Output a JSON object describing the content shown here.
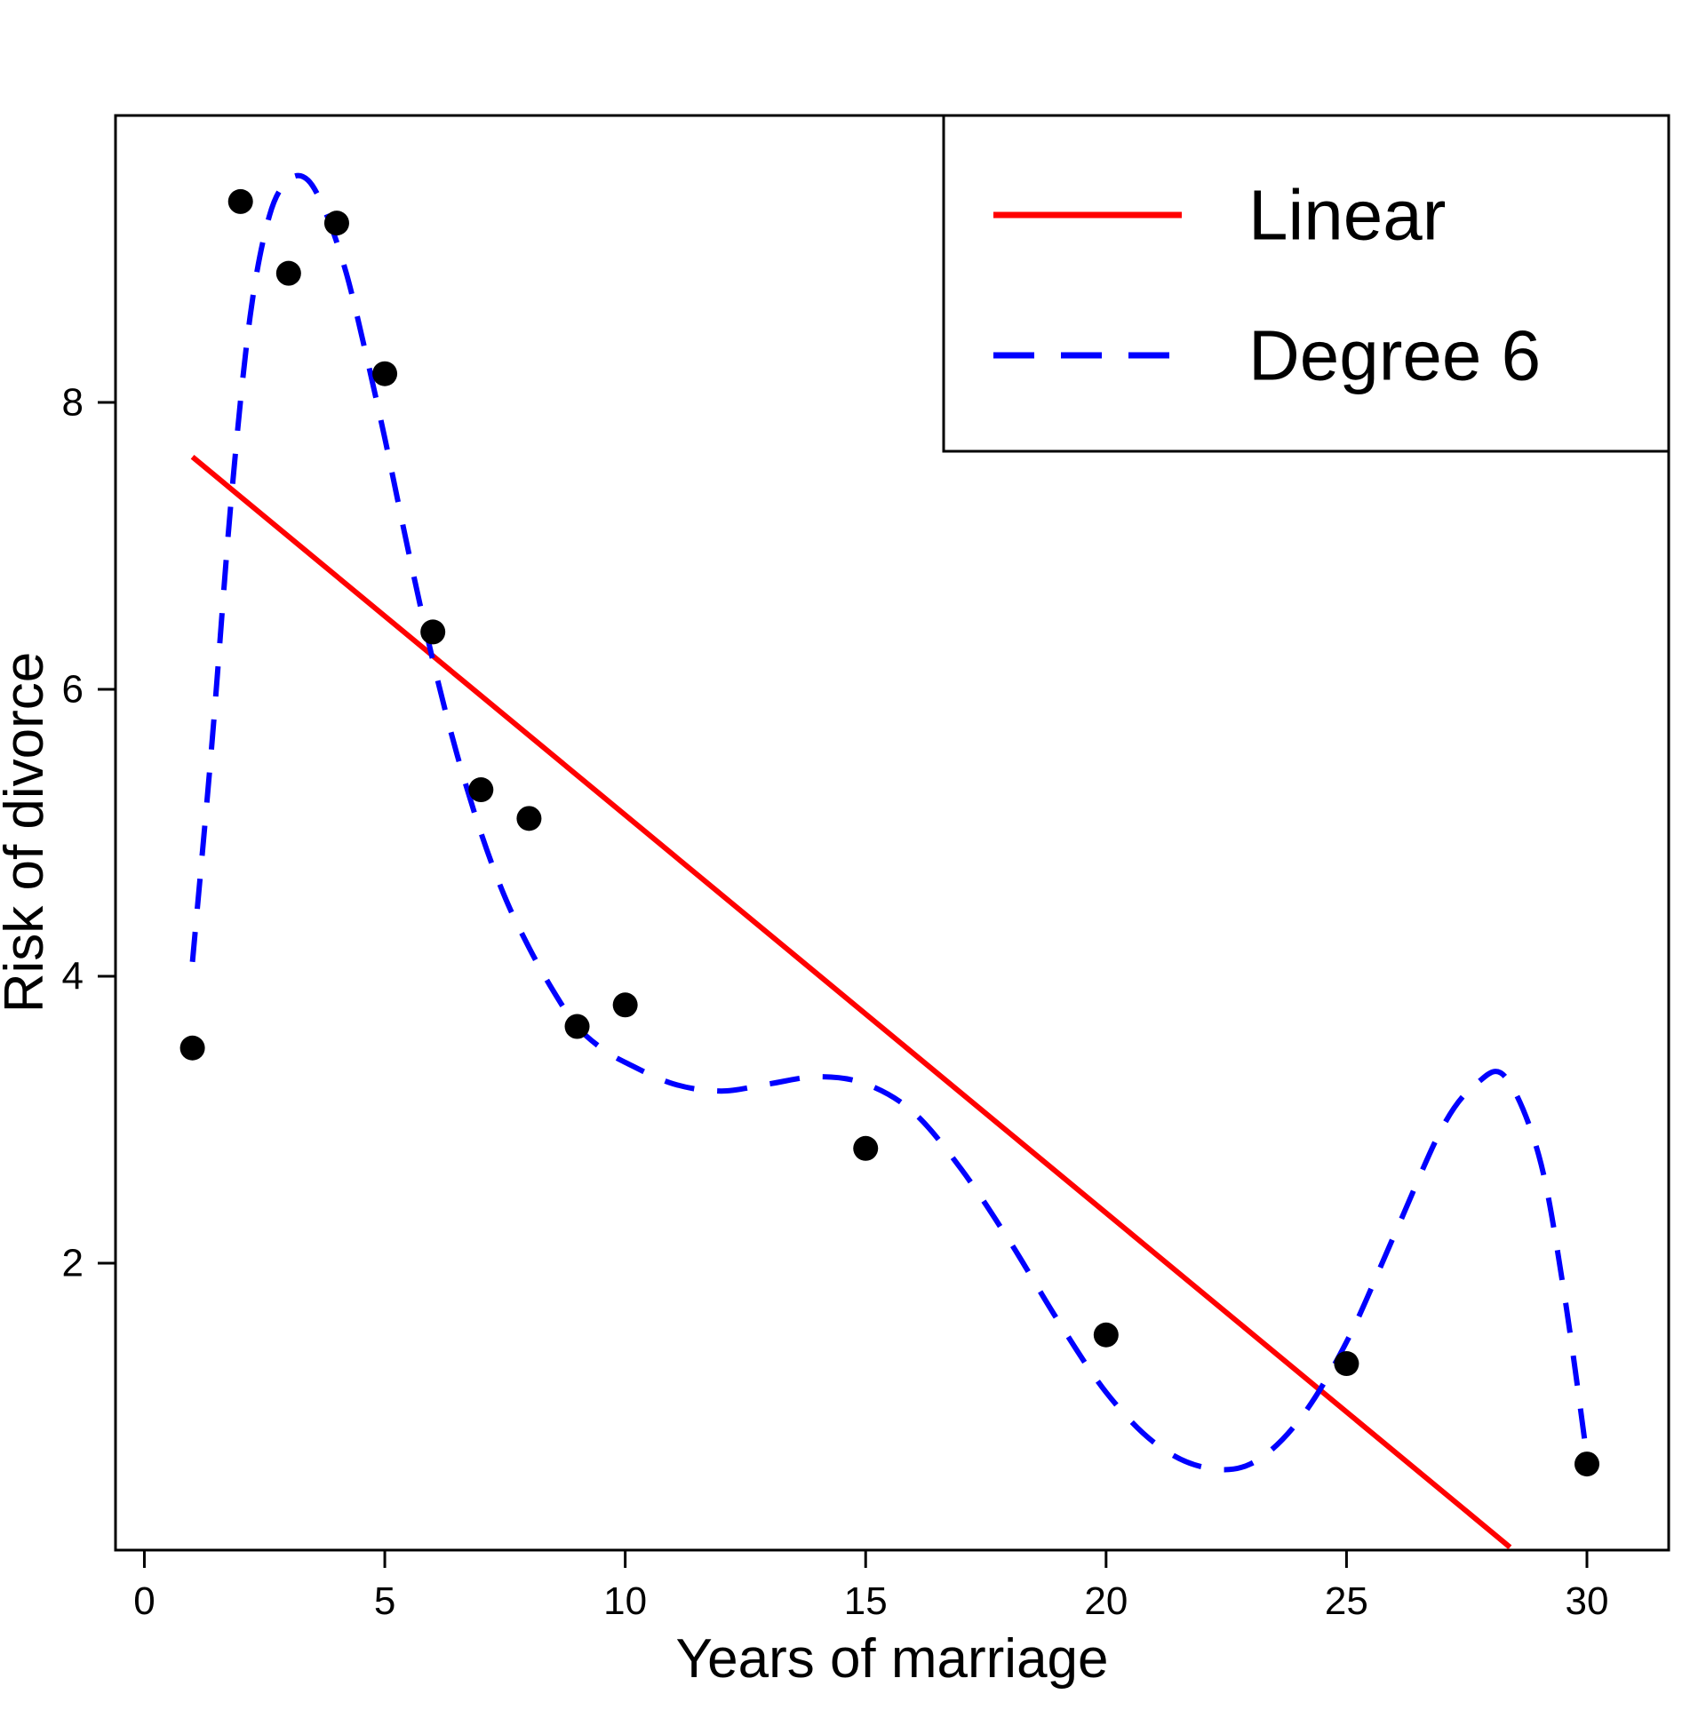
{
  "chart_data": {
    "type": "scatter",
    "title": "",
    "xlabel": "Years of marriage",
    "ylabel": "Risk of divorce",
    "xlim": [
      -0.6,
      31.7
    ],
    "ylim": [
      0,
      10
    ],
    "x_ticks": [
      0,
      5,
      10,
      15,
      20,
      25,
      30
    ],
    "y_ticks": [
      2,
      4,
      6,
      8
    ],
    "grid": false,
    "legend_position": "top-right",
    "point_color": "#000000",
    "points": {
      "x": [
        1,
        2,
        3,
        4,
        5,
        6,
        7,
        8,
        9,
        10,
        15,
        20,
        25,
        30
      ],
      "y": [
        3.5,
        9.4,
        8.9,
        9.25,
        8.2,
        6.4,
        5.3,
        5.1,
        3.65,
        3.8,
        2.8,
        1.5,
        1.3,
        0.6
      ]
    },
    "series": [
      {
        "name": "Linear",
        "type": "line",
        "style": "solid",
        "color": "#ff0000",
        "x": [
          1,
          28.4
        ],
        "y": [
          7.62,
          0.02
        ]
      },
      {
        "name": "Degree 6",
        "type": "line",
        "style": "dashed",
        "color": "#0000ff",
        "x": [
          1,
          1.4,
          1.8,
          2.2,
          2.6,
          3.0,
          3.4,
          3.8,
          4.2,
          4.6,
          5.0,
          5.5,
          6.0,
          6.5,
          7.0,
          7.5,
          8.0,
          8.5,
          9.0,
          9.5,
          10,
          11,
          12,
          13,
          14,
          15,
          16,
          17,
          18,
          19,
          20,
          21,
          22,
          23,
          24,
          25,
          26,
          27,
          27.7,
          28.3,
          29,
          29.5,
          30
        ],
        "y": [
          4.1,
          5.6,
          7.3,
          8.6,
          9.3,
          9.55,
          9.55,
          9.3,
          8.9,
          8.35,
          7.75,
          6.95,
          6.2,
          5.55,
          5.0,
          4.55,
          4.2,
          3.9,
          3.65,
          3.5,
          3.4,
          3.25,
          3.2,
          3.25,
          3.3,
          3.25,
          3.05,
          2.65,
          2.15,
          1.6,
          1.1,
          0.75,
          0.58,
          0.6,
          0.9,
          1.45,
          2.2,
          2.95,
          3.25,
          3.3,
          2.75,
          1.85,
          0.65
        ]
      }
    ]
  }
}
